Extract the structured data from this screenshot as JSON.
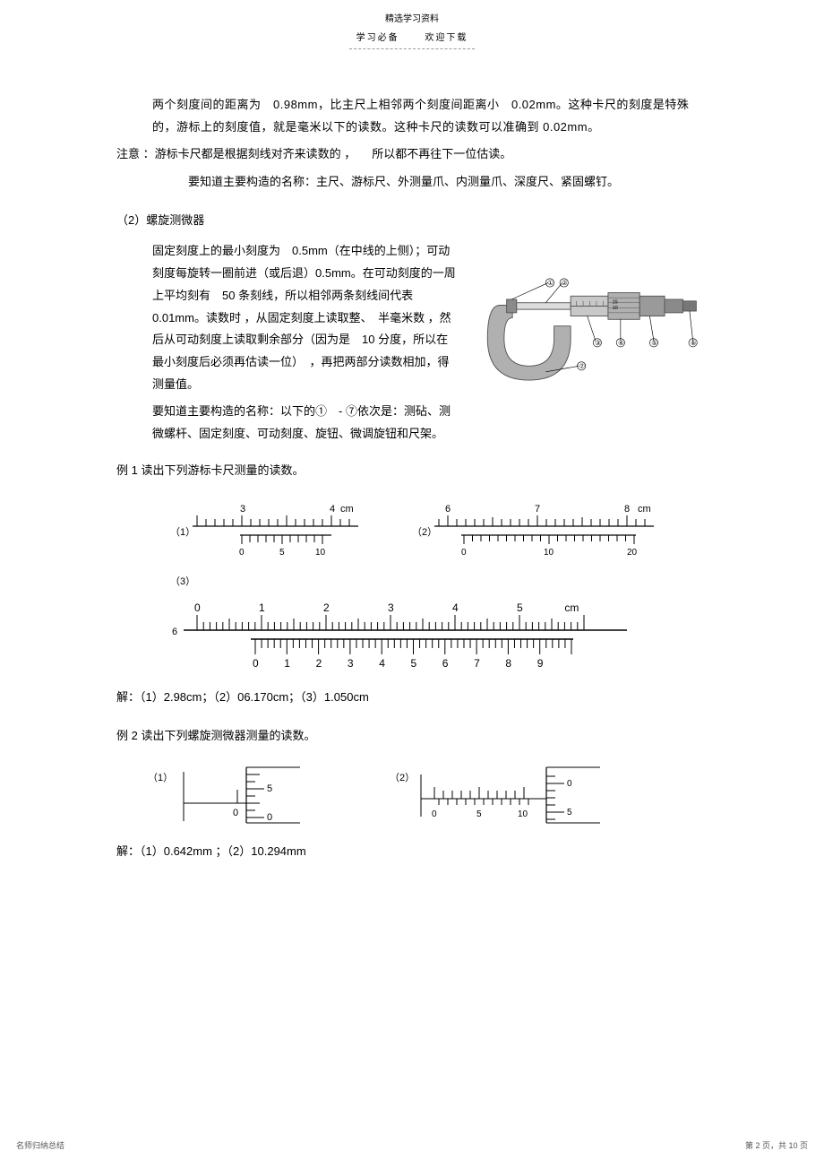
{
  "header": {
    "top": "精选学习资料",
    "sub_left": "学习必备",
    "sub_right": "欢迎下载"
  },
  "body": {
    "p1": "两个刻度间的距离为　0.98mm，比主尺上相邻两个刻度间距离小　0.02mm。这种卡尺的刻度是特殊的，游标上的刻度值，就是毫米以下的读数。这种卡尺的读数可以准确到 0.02mm。",
    "p2_prefix": "注意 ：游标卡尺都是根据刻线对齐来读数的 ，",
    "p2_suffix": "所以都不再往下一位估读。",
    "p3": "要知道主要构造的名称：主尺、游标尺、外测量爪、内测量爪、深度尺、紧固螺钉。",
    "section2": "（2）螺旋测微器",
    "p4": "固定刻度上的最小刻度为　0.5mm（在中线的上侧）；可动刻度每旋转一圈前进（或后退）0.5mm。在可动刻度的一周上平均刻有　50 条刻线，所以相邻两条刻线间代表　0.01mm。读数时 ，从固定刻度上读取整、　半毫米数 ，然后从可动刻度上读取剩余部分（因为是　10 分度，所以在最小刻度后必须再估读一位）　，再把两部分读数相加，得测量值。",
    "p5": "要知道主要构造的名称：以下的①　- ⑦依次是：测砧、测微螺杆、固定刻度、可动刻度、旋钮、微调旋钮和尺架。",
    "ex1_title": "例 1 读出下列游标卡尺测量的读数。",
    "ex1_ans": "解：（1）2.98cm；（2）06.170cm；（3）1.050cm",
    "ex2_title": "例 2 读出下列螺旋测微器测量的读数。",
    "ex2_ans": "解：（1）0.642mm ；（2）10.294mm",
    "ruler1": {
      "label": "（1）",
      "top_labels": [
        "3",
        "4"
      ],
      "top_unit": "cm",
      "bottom_labels": [
        "0",
        "5",
        "10"
      ]
    },
    "ruler2": {
      "label": "（2）",
      "top_labels": [
        "6",
        "7",
        "8"
      ],
      "top_unit": "cm",
      "bottom_labels": [
        "0",
        "10",
        "20"
      ]
    },
    "ruler3": {
      "label": "（3）",
      "top_labels": [
        "0",
        "1",
        "2",
        "3",
        "4",
        "5"
      ],
      "top_unit": "cm",
      "start_label": "6",
      "bottom_labels": [
        "0",
        "1",
        "2",
        "3",
        "4",
        "5",
        "6",
        "7",
        "8",
        "9"
      ]
    },
    "micro_labels": [
      "①",
      "②",
      "③",
      "④",
      "⑤",
      "⑥",
      "⑦"
    ],
    "micro1": {
      "label": "（1）",
      "top_num": "5",
      "bottom_num": "0",
      "left_num": "0"
    },
    "micro2": {
      "label": "（2）",
      "right_top": "0",
      "right_mid": "5",
      "left_a": "0",
      "left_b": "5",
      "left_c": "10"
    }
  },
  "footer": {
    "left": "名师归纳总结",
    "right": "第 2 页，共 10 页"
  },
  "colors": {
    "text": "#000000",
    "line": "#000000",
    "micrometer_body": "#b0b0b0",
    "micrometer_dark": "#7a7a7a",
    "micrometer_light": "#dcdcdc"
  }
}
